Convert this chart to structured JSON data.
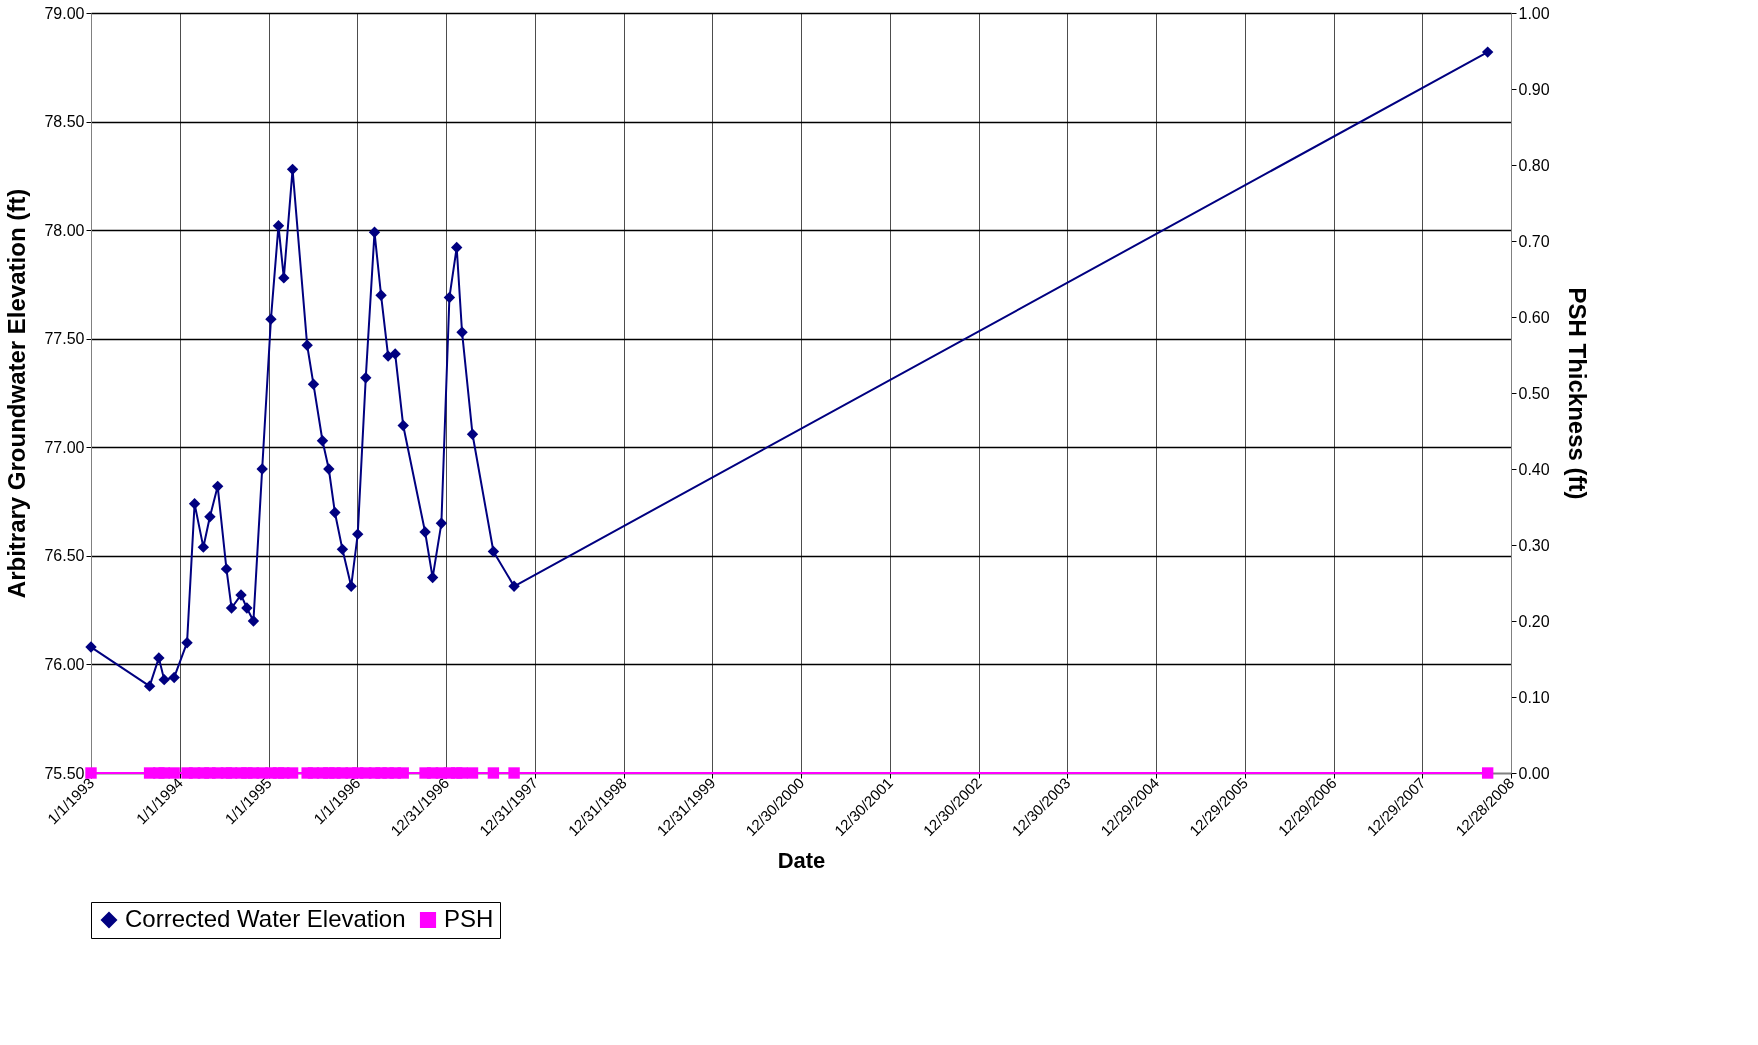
{
  "chart_data": {
    "type": "line",
    "xlabel": "Date",
    "ylabel": "Arbitrary Groundwater Elevation (ft)",
    "y2label": "PSH Thickness (ft)",
    "x": [
      "1993-01-01",
      "1993-08-30",
      "1993-10-07",
      "1993-10-29",
      "1993-12-09",
      "1994-01-31",
      "1994-03-03",
      "1994-04-08",
      "1994-05-05",
      "1994-06-06",
      "1994-07-12",
      "1994-08-02",
      "1994-09-10",
      "1994-10-04",
      "1994-10-31",
      "1994-12-06",
      "1995-01-11",
      "1995-02-11",
      "1995-03-05",
      "1995-04-10",
      "1995-06-09",
      "1995-07-05",
      "1995-08-11",
      "1995-09-06",
      "1995-10-01",
      "1995-11-01",
      "1995-12-07",
      "1996-01-03",
      "1996-02-05",
      "1996-03-12",
      "1996-04-08",
      "1996-05-07",
      "1996-06-05",
      "1996-07-08",
      "1996-10-06",
      "1996-11-06",
      "1996-12-12",
      "1997-01-14",
      "1997-02-13",
      "1997-03-07",
      "1997-04-19",
      "1997-07-14",
      "1997-10-07",
      "2008-09-23"
    ],
    "series": [
      {
        "name": "Corrected Water Elevation",
        "color": "#000080",
        "marker": "diamond",
        "values": [
          76.08,
          75.9,
          76.03,
          75.93,
          75.94,
          76.1,
          76.74,
          76.54,
          76.68,
          76.82,
          76.44,
          76.26,
          76.32,
          76.26,
          76.2,
          76.9,
          77.59,
          78.02,
          77.78,
          78.28,
          77.47,
          77.29,
          77.03,
          76.9,
          76.7,
          76.53,
          76.36,
          76.6,
          77.32,
          77.99,
          77.7,
          77.42,
          77.43,
          77.1,
          76.61,
          76.4,
          76.65,
          77.69,
          77.92,
          77.53,
          77.06,
          76.52,
          76.36,
          78.82
        ]
      },
      {
        "name": "PSH",
        "color": "#ff00ff",
        "marker": "square",
        "axis": "y2",
        "values": [
          0,
          0,
          0,
          0,
          0,
          0,
          0,
          0,
          0,
          0,
          0,
          0,
          0,
          0,
          0,
          0,
          0,
          0,
          0,
          0,
          0,
          0,
          0,
          0,
          0,
          0,
          0,
          0,
          0,
          0,
          0,
          0,
          0,
          0,
          0,
          0,
          0,
          0,
          0,
          0,
          0,
          0,
          0,
          0
        ]
      }
    ],
    "xlim": [
      "1993-01-01",
      "2008-12-28"
    ],
    "xticks": [
      {
        "value": "1993-01-01",
        "label": "1/1/1993"
      },
      {
        "value": "1994-01-01",
        "label": "1/1/1994"
      },
      {
        "value": "1995-01-01",
        "label": "1/1/1995"
      },
      {
        "value": "1996-01-01",
        "label": "1/1/1996"
      },
      {
        "value": "1996-12-31",
        "label": "12/31/1996"
      },
      {
        "value": "1997-12-31",
        "label": "12/31/1997"
      },
      {
        "value": "1998-12-31",
        "label": "12/31/1998"
      },
      {
        "value": "1999-12-31",
        "label": "12/31/1999"
      },
      {
        "value": "2000-12-30",
        "label": "12/30/2000"
      },
      {
        "value": "2001-12-30",
        "label": "12/30/2001"
      },
      {
        "value": "2002-12-30",
        "label": "12/30/2002"
      },
      {
        "value": "2003-12-30",
        "label": "12/30/2003"
      },
      {
        "value": "2004-12-29",
        "label": "12/29/2004"
      },
      {
        "value": "2005-12-29",
        "label": "12/29/2005"
      },
      {
        "value": "2006-12-29",
        "label": "12/29/2006"
      },
      {
        "value": "2007-12-29",
        "label": "12/29/2007"
      },
      {
        "value": "2008-12-28",
        "label": "12/28/2008"
      }
    ],
    "ylim": [
      75.5,
      79
    ],
    "yticks": [
      {
        "value": 75.5,
        "label": "75.50"
      },
      {
        "value": 76,
        "label": "76.00"
      },
      {
        "value": 76.5,
        "label": "76.50"
      },
      {
        "value": 77,
        "label": "77.00"
      },
      {
        "value": 77.5,
        "label": "77.50"
      },
      {
        "value": 78,
        "label": "78.00"
      },
      {
        "value": 78.5,
        "label": "78.50"
      },
      {
        "value": 79,
        "label": "79.00"
      }
    ],
    "y2lim": [
      0,
      1
    ],
    "y2ticks": [
      {
        "value": 0,
        "label": "0.00"
      },
      {
        "value": 0.1,
        "label": "0.10"
      },
      {
        "value": 0.2,
        "label": "0.20"
      },
      {
        "value": 0.3,
        "label": "0.30"
      },
      {
        "value": 0.4,
        "label": "0.40"
      },
      {
        "value": 0.5,
        "label": "0.50"
      },
      {
        "value": 0.6,
        "label": "0.60"
      },
      {
        "value": 0.7,
        "label": "0.70"
      },
      {
        "value": 0.8,
        "label": "0.80"
      },
      {
        "value": 0.9,
        "label": "0.90"
      },
      {
        "value": 1,
        "label": "1.00"
      }
    ],
    "grid": true,
    "legend": "bottom",
    "line_style": "solid"
  }
}
